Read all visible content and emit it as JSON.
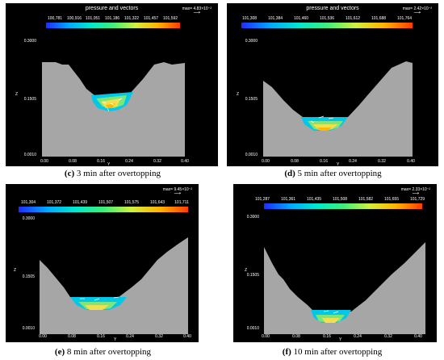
{
  "panels": [
    {
      "title": "pressure and vectors",
      "max_label": "max= 4.83×10⁻²",
      "colorbar_ticks": [
        "100,781",
        "100,916",
        "101,051",
        "101,186",
        "101,322",
        "101,457",
        "101,592"
      ],
      "z_label": "Z",
      "z_ticks": [
        "0.3000",
        "0.1505",
        "0.0010"
      ],
      "y_label": "Y",
      "y_ticks": [
        "0.00",
        "0.08",
        "0.16",
        "0.24",
        "0.32",
        "0.40"
      ],
      "caption_letter": "(c)",
      "caption_text": " 3 min after overtopping"
    },
    {
      "title": "pressure and vectors",
      "max_label": "max= 2.42×10⁻²",
      "colorbar_ticks": [
        "101,308",
        "101,384",
        "101,460",
        "101,536",
        "101,612",
        "101,688",
        "101,764"
      ],
      "z_label": "Z",
      "z_ticks": [
        "0.3000",
        "0.1505",
        "0.0010"
      ],
      "y_label": "Y",
      "y_ticks": [
        "0.00",
        "0.08",
        "0.16",
        "0.24",
        "0.32",
        "0.40"
      ],
      "caption_letter": "(d)",
      "caption_text": " 5 min after overtopping"
    },
    {
      "title": "",
      "max_label": "max= 9.45×10⁻²",
      "colorbar_ticks": [
        "101,304",
        "101,372",
        "101,439",
        "101,507",
        "101,575",
        "101,643",
        "101,711"
      ],
      "z_label": "Z",
      "z_ticks": [
        "0.3000",
        "0.1505",
        "0.0010"
      ],
      "y_label": "Y",
      "y_ticks": [
        "0.00",
        "0.08",
        "0.16",
        "0.24",
        "0.32",
        "0.40"
      ],
      "caption_letter": "(e)",
      "caption_text": " 8 min after overtopping"
    },
    {
      "title": "",
      "max_label": "max= 2.33×10⁻²",
      "colorbar_ticks": [
        "101,287",
        "101,361",
        "101,435",
        "101,508",
        "101,582",
        "101,655",
        "101,729"
      ],
      "z_label": "Z",
      "z_ticks": [
        "0.3000",
        "0.1505",
        "0.0010"
      ],
      "y_label": "Y",
      "y_ticks": [
        "0.00",
        "0.08",
        "0.16",
        "0.24",
        "0.32",
        "0.40"
      ],
      "caption_letter": "(f)",
      "caption_text": " 10 min after overtopping"
    }
  ]
}
